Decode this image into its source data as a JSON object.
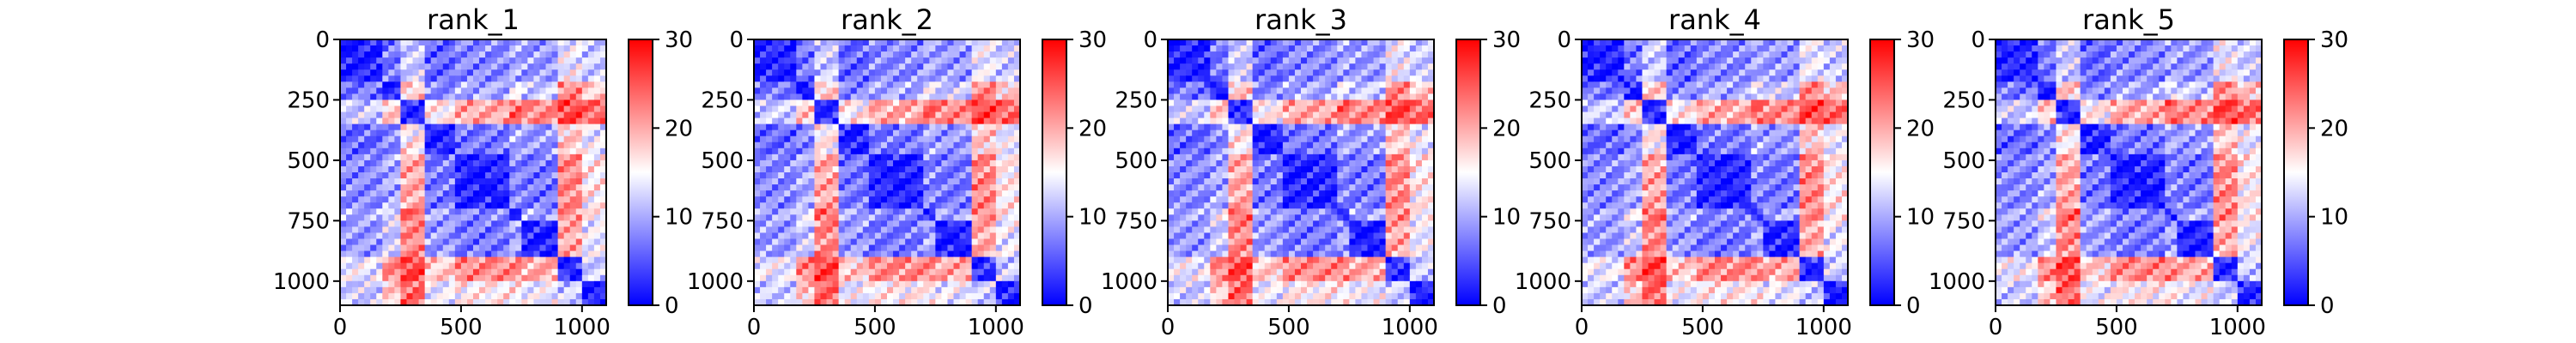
{
  "chart_data": [
    {
      "type": "heatmap",
      "title": "rank_1",
      "x_ticks": [
        0,
        500,
        1000
      ],
      "y_ticks": [
        0,
        250,
        500,
        750,
        1000
      ],
      "xlim": [
        0,
        1100
      ],
      "ylim": [
        1100,
        0
      ],
      "colorbar": {
        "range": [
          0,
          30
        ],
        "ticks": [
          0,
          10,
          20,
          30
        ],
        "cmap": "bwr",
        "colors": [
          "#0000ff",
          "#ffffff",
          "#ff0000"
        ]
      }
    },
    {
      "type": "heatmap",
      "title": "rank_2",
      "x_ticks": [
        0,
        500,
        1000
      ],
      "y_ticks": [
        0,
        250,
        500,
        750,
        1000
      ],
      "xlim": [
        0,
        1100
      ],
      "ylim": [
        1100,
        0
      ],
      "colorbar": {
        "range": [
          0,
          30
        ],
        "ticks": [
          0,
          10,
          20,
          30
        ],
        "cmap": "bwr",
        "colors": [
          "#0000ff",
          "#ffffff",
          "#ff0000"
        ]
      }
    },
    {
      "type": "heatmap",
      "title": "rank_3",
      "x_ticks": [
        0,
        500,
        1000
      ],
      "y_ticks": [
        0,
        250,
        500,
        750,
        1000
      ],
      "xlim": [
        0,
        1100
      ],
      "ylim": [
        1100,
        0
      ],
      "colorbar": {
        "range": [
          0,
          30
        ],
        "ticks": [
          0,
          10,
          20,
          30
        ],
        "cmap": "bwr",
        "colors": [
          "#0000ff",
          "#ffffff",
          "#ff0000"
        ]
      }
    },
    {
      "type": "heatmap",
      "title": "rank_4",
      "x_ticks": [
        0,
        500,
        1000
      ],
      "y_ticks": [
        0,
        250,
        500,
        750,
        1000
      ],
      "xlim": [
        0,
        1100
      ],
      "ylim": [
        1100,
        0
      ],
      "colorbar": {
        "range": [
          0,
          30
        ],
        "ticks": [
          0,
          10,
          20,
          30
        ],
        "cmap": "bwr",
        "colors": [
          "#0000ff",
          "#ffffff",
          "#ff0000"
        ]
      }
    },
    {
      "type": "heatmap",
      "title": "rank_5",
      "x_ticks": [
        0,
        500,
        1000
      ],
      "y_ticks": [
        0,
        250,
        500,
        750,
        1000
      ],
      "xlim": [
        0,
        1100
      ],
      "ylim": [
        1100,
        0
      ],
      "colorbar": {
        "range": [
          0,
          30
        ],
        "ticks": [
          0,
          10,
          20,
          30
        ],
        "cmap": "bwr",
        "colors": [
          "#0000ff",
          "#ffffff",
          "#ff0000"
        ]
      }
    }
  ]
}
